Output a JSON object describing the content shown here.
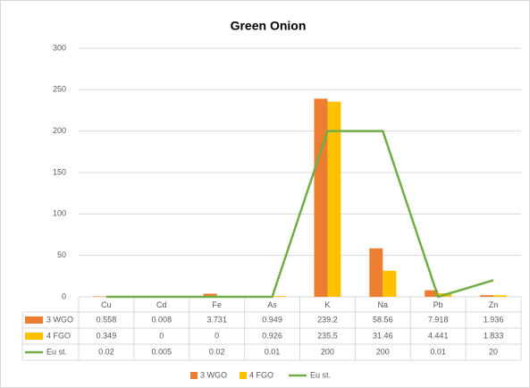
{
  "chart_data": {
    "type": "bar",
    "title": "Green Onion",
    "categories": [
      "Cu",
      "Cd",
      "Fe",
      "As",
      "K",
      "Na",
      "Pb",
      "Zn"
    ],
    "series": [
      {
        "name": "3 WGO",
        "color": "#ed7d31",
        "type": "bar",
        "values": [
          0.558,
          0.008,
          3.731,
          0.949,
          239.2,
          58.56,
          7.918,
          1.936
        ]
      },
      {
        "name": "4 FGO",
        "color": "#ffc000",
        "type": "bar",
        "values": [
          0.349,
          0,
          0,
          0.926,
          235.5,
          31.46,
          4.441,
          1.833
        ]
      },
      {
        "name": "Eu st.",
        "color": "#70ad47",
        "type": "line",
        "values": [
          0.02,
          0.005,
          0.02,
          0.01,
          200,
          200,
          0.01,
          20
        ]
      }
    ],
    "ylim": [
      0,
      300
    ],
    "yticks": [
      0,
      50,
      100,
      150,
      200,
      250,
      300
    ],
    "grid": true,
    "legend": "bottom"
  }
}
